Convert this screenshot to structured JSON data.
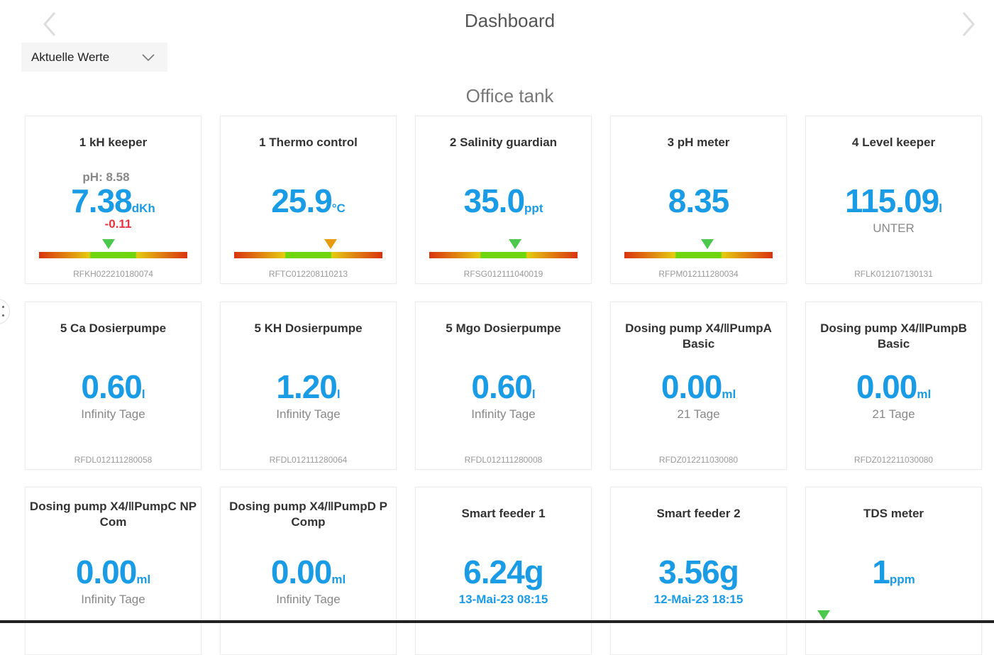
{
  "header": {
    "title": "Dashboard",
    "prev_icon": "chevron-left-icon",
    "next_icon": "chevron-right-icon"
  },
  "view_select": {
    "selected": "Aktuelle Werte"
  },
  "tank": {
    "title": "Office tank"
  },
  "colors": {
    "value": "#1a9be6",
    "negative": "#e8343e",
    "marker_ok": "#4cc94c",
    "marker_warn": "#e89a10"
  },
  "cards": [
    {
      "name": "1 kH keeper",
      "sub": "pH: 8.58",
      "value": "7.38",
      "unit": "dKh",
      "detail": "-0.11",
      "detail_style": "red",
      "serial": "RFKH022210180074",
      "gauge_position": 0.47,
      "marker_color": "#4cc94c"
    },
    {
      "name": "1 Thermo control",
      "value": "25.9",
      "unit": "°C",
      "serial": "RFTC012208110213",
      "gauge_position": 0.65,
      "marker_color": "#e89a10"
    },
    {
      "name": "2 Salinity guardian",
      "value": "35.0",
      "unit": "ppt",
      "serial": "RFSG012111040019",
      "gauge_position": 0.58,
      "marker_color": "#4cc94c"
    },
    {
      "name": "3 pH meter",
      "value": "8.35",
      "unit": "",
      "serial": "RFPM012111280034",
      "gauge_position": 0.56,
      "marker_color": "#4cc94c"
    },
    {
      "name": "4 Level keeper",
      "value": "115.09",
      "unit": "l",
      "detail": "UNTER",
      "serial": "RFLK012107130131"
    },
    {
      "name": "5 Ca Dosierpumpe",
      "value": "0.60",
      "unit": "l",
      "detail": "Infinity Tage",
      "serial": "RFDL012111280058"
    },
    {
      "name": "5 KH Dosierpumpe",
      "value": "1.20",
      "unit": "l",
      "detail": "Infinity Tage",
      "serial": "RFDL012111280064"
    },
    {
      "name": "5 Mgo Dosierpumpe",
      "value": "0.60",
      "unit": "l",
      "detail": "Infinity Tage",
      "serial": "RFDL012111280008"
    },
    {
      "name": "Dosing pump X4/‖PumpA Basic",
      "value": "0.00",
      "unit": "ml",
      "detail": "21 Tage",
      "serial": "RFDZ012211030080"
    },
    {
      "name": "Dosing pump X4/‖PumpB Basic",
      "value": "0.00",
      "unit": "ml",
      "detail": "21 Tage",
      "serial": "RFDZ012211030080"
    },
    {
      "name": "Dosing pump X4/‖PumpC NP Com",
      "value": "0.00",
      "unit": "ml",
      "detail": "Infinity Tage",
      "two_line": true
    },
    {
      "name": "Dosing pump X4/‖PumpD P Comp",
      "value": "0.00",
      "unit": "ml",
      "detail": "Infinity Tage",
      "two_line": true
    },
    {
      "name": "Smart feeder 1",
      "value": "6.24g",
      "unit": "",
      "detail": "13-Mai-23 08:15",
      "detail_style": "blue"
    },
    {
      "name": "Smart feeder 2",
      "value": "3.56g",
      "unit": "",
      "detail": "12-Mai-23 18:15",
      "detail_style": "blue"
    },
    {
      "name": "TDS meter",
      "value": "1",
      "unit": "ppm",
      "gauge_position": 0.03,
      "marker_color": "#4cc94c",
      "gauge_hidden": true
    }
  ]
}
